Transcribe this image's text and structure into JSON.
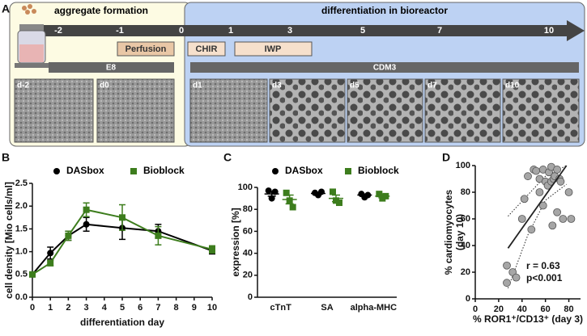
{
  "panel_labels": [
    "A",
    "B",
    "C",
    "D"
  ],
  "diagram": {
    "title_left": "aggregate formation",
    "title_right": "differentiation in bioreactor",
    "timeline": [
      "-2",
      "-1",
      "0",
      "1",
      "3",
      "5",
      "7",
      "10"
    ],
    "phases": [
      "Perfusion",
      "CHIR",
      "IWP"
    ],
    "media": [
      "E8",
      "CDM3"
    ],
    "images": [
      "d-2",
      "d0",
      "d1",
      "d3",
      "d5",
      "d7",
      "d10"
    ]
  },
  "chart_data": [
    {
      "type": "line",
      "y_label": "cell density [Mio cells/ml]",
      "x_label": "differentiation day",
      "x": [
        0,
        1,
        2,
        3,
        5,
        7,
        10
      ],
      "xlim": [
        0,
        10
      ],
      "xticks": [
        0,
        1,
        2,
        3,
        4,
        5,
        6,
        7,
        8,
        9,
        10
      ],
      "ylim": [
        0,
        2.5
      ],
      "yticks": [
        {
          "value": 0,
          "label": "0.0"
        },
        0.5,
        {
          "value": 1,
          "label": "1.0"
        },
        1.5,
        {
          "value": 2,
          "label": "2.0"
        },
        2.5
      ],
      "series": [
        {
          "name": "DASbox",
          "color": "#000000",
          "marker": "circle",
          "values": [
            0.5,
            0.97,
            1.35,
            1.6,
            1.52,
            1.45,
            1.02
          ],
          "errors": [
            0.05,
            0.13,
            0.1,
            0.15,
            0.25,
            0.15,
            0.07
          ]
        },
        {
          "name": "Bioblock",
          "color": "#3d7d1d",
          "marker": "square",
          "values": [
            0.5,
            0.75,
            1.35,
            1.92,
            1.75,
            1.35,
            1.05
          ],
          "errors": [
            0.05,
            0.06,
            0.1,
            0.15,
            0.28,
            0.2,
            0.08
          ]
        }
      ]
    },
    {
      "type": "strip",
      "y_label": "expression [%]",
      "categories": [
        "cTnT",
        "SA",
        "alpha-MHC"
      ],
      "ylim": [
        0,
        100
      ],
      "yticks": [
        0,
        20,
        40,
        60,
        80,
        100
      ],
      "series": [
        {
          "name": "DASbox",
          "color": "#000000",
          "marker": "circle",
          "points": [
            [
              97,
              90,
              96
            ],
            [
              95,
              93,
              96
            ],
            [
              94,
              91,
              93
            ]
          ],
          "means": [
            94,
            94.5,
            93
          ],
          "errors": [
            2,
            1,
            1
          ]
        },
        {
          "name": "Bioblock",
          "color": "#3d7d1d",
          "marker": "square",
          "points": [
            [
              95,
              88,
              82
            ],
            [
              96,
              88,
              86
            ],
            [
              94,
              90,
              92
            ]
          ],
          "means": [
            89,
            90,
            92
          ],
          "errors": [
            4,
            3,
            1.5
          ]
        }
      ]
    },
    {
      "type": "scatter",
      "y_label": [
        "% cardiomyocytes",
        "(day 10)"
      ],
      "x_label": "% ROR1⁺/CD13⁺ (day 3)",
      "annotations": [
        "r = 0.63",
        "p<0.001"
      ],
      "xlim": [
        0,
        90
      ],
      "xticks": [
        0,
        20,
        40,
        60,
        80
      ],
      "ylim": [
        0,
        100
      ],
      "yticks": [
        0,
        20,
        40,
        60,
        80,
        100
      ],
      "color": "#a6a6a6",
      "x": [
        27,
        27,
        32,
        35,
        40,
        42,
        45,
        48,
        50,
        52,
        55,
        55,
        58,
        58,
        60,
        62,
        63,
        65,
        65,
        66,
        67,
        68,
        70,
        70,
        72,
        73,
        75,
        80,
        82
      ],
      "y": [
        25,
        12,
        20,
        16,
        60,
        75,
        92,
        52,
        97,
        96,
        80,
        90,
        70,
        97,
        88,
        85,
        95,
        99,
        88,
        55,
        90,
        92,
        97,
        65,
        90,
        88,
        60,
        80,
        60
      ],
      "regression": {
        "x": [
          28,
          78
        ],
        "y": [
          38,
          100
        ]
      },
      "ci_lower": {
        "x": [
          28,
          45,
          60,
          78
        ],
        "y": [
          8,
          48,
          74,
          86
        ]
      },
      "ci_upper": {
        "x": [
          28,
          45,
          60,
          78
        ],
        "y": [
          62,
          78,
          92,
          100
        ]
      }
    }
  ]
}
